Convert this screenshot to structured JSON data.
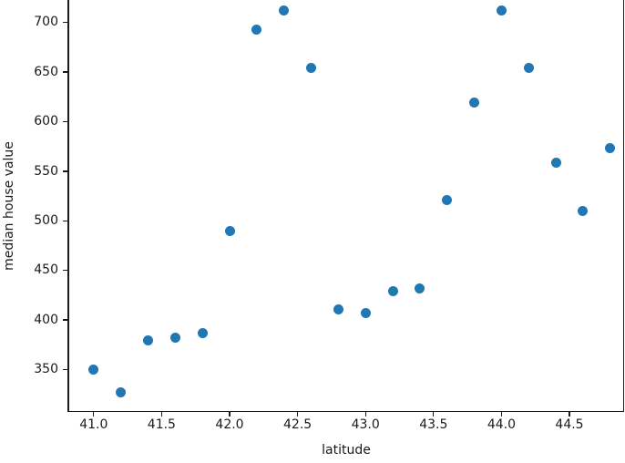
{
  "chart_data": {
    "type": "scatter",
    "title": "",
    "xlabel": "latitude",
    "ylabel": "median house value",
    "x": [
      41.0,
      41.2,
      41.4,
      41.6,
      41.8,
      42.0,
      42.2,
      42.4,
      42.6,
      42.8,
      43.0,
      43.2,
      43.4,
      43.6,
      43.8,
      44.0,
      44.2,
      44.4,
      44.6,
      44.8
    ],
    "y": [
      350,
      327,
      379,
      382,
      387,
      490,
      693,
      712,
      654,
      411,
      407,
      429,
      432,
      521,
      619,
      712,
      654,
      559,
      510,
      573
    ],
    "marker_color": "#1f77b4",
    "marker_diameter_px": 11,
    "grid": false,
    "legend": null,
    "x_ticks": [
      {
        "value": 41.0,
        "label": "41.0"
      },
      {
        "value": 41.5,
        "label": "41.5"
      },
      {
        "value": 42.0,
        "label": "42.0"
      },
      {
        "value": 42.5,
        "label": "42.5"
      },
      {
        "value": 43.0,
        "label": "43.0"
      },
      {
        "value": 43.5,
        "label": "43.5"
      },
      {
        "value": 44.0,
        "label": "44.0"
      },
      {
        "value": 44.5,
        "label": "44.5"
      }
    ],
    "y_ticks": [
      {
        "value": 350,
        "label": "350"
      },
      {
        "value": 400,
        "label": "400"
      },
      {
        "value": 450,
        "label": "450"
      },
      {
        "value": 500,
        "label": "500"
      },
      {
        "value": 550,
        "label": "550"
      },
      {
        "value": 600,
        "label": "600"
      },
      {
        "value": 650,
        "label": "650"
      },
      {
        "value": 700,
        "label": "700"
      }
    ],
    "view": {
      "xlim": [
        40.807,
        44.902
      ],
      "ylim": [
        307.3,
        722.7
      ],
      "top_spine_visible": false,
      "note": "top of axes cropped at image edge"
    }
  }
}
